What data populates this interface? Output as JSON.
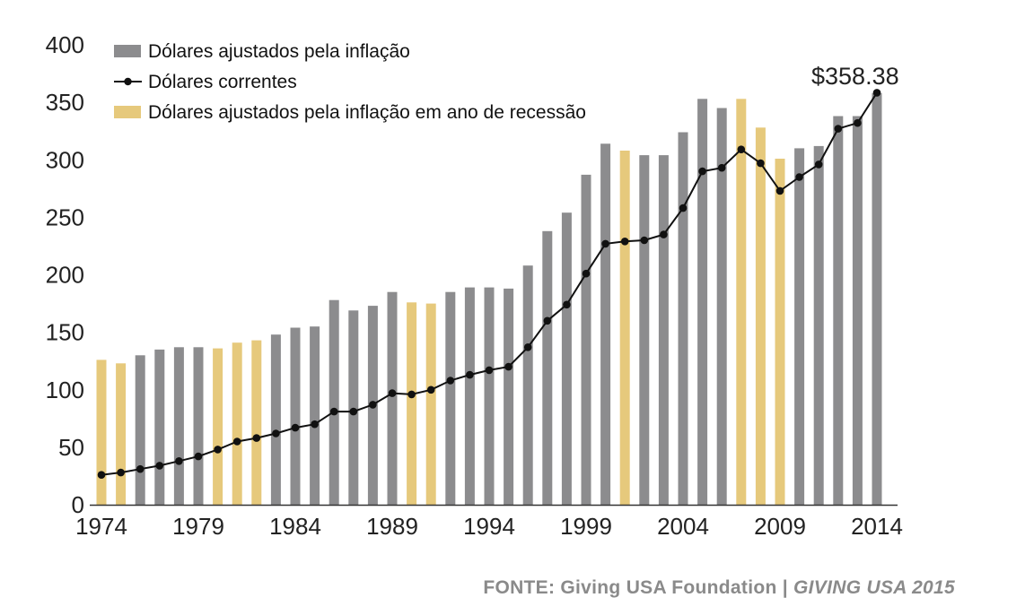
{
  "chart_data": {
    "type": "bar",
    "x": [
      1974,
      1975,
      1976,
      1977,
      1978,
      1979,
      1980,
      1981,
      1982,
      1983,
      1984,
      1985,
      1986,
      1987,
      1988,
      1989,
      1990,
      1991,
      1992,
      1993,
      1994,
      1995,
      1996,
      1997,
      1998,
      1999,
      2000,
      2001,
      2002,
      2003,
      2004,
      2005,
      2006,
      2007,
      2008,
      2009,
      2010,
      2011,
      2012,
      2013,
      2014
    ],
    "series": [
      {
        "name": "Dólares ajustados pela inflação",
        "kind": "bar",
        "color": "#8c8c8e",
        "recession_color": "#e6c97c",
        "values": [
          126,
          123,
          130,
          135,
          137,
          137,
          136,
          141,
          143,
          148,
          154,
          155,
          178,
          169,
          173,
          185,
          176,
          175,
          185,
          189,
          189,
          188,
          208,
          238,
          254,
          287,
          314,
          308,
          304,
          304,
          324,
          353,
          345,
          353,
          328,
          301,
          310,
          312,
          338,
          338,
          358
        ],
        "recession_flags": [
          1,
          1,
          0,
          0,
          0,
          0,
          1,
          1,
          1,
          0,
          0,
          0,
          0,
          0,
          0,
          0,
          1,
          1,
          0,
          0,
          0,
          0,
          0,
          0,
          0,
          0,
          0,
          1,
          0,
          0,
          0,
          0,
          0,
          1,
          1,
          1,
          0,
          0,
          0,
          0,
          0
        ]
      },
      {
        "name": "Dólares correntes",
        "kind": "line",
        "color": "#111111",
        "values": [
          26,
          28,
          31,
          34,
          38,
          42,
          48,
          55,
          58,
          62,
          67,
          70,
          81,
          81,
          87,
          97,
          96,
          100,
          108,
          113,
          117,
          120,
          137,
          160,
          174,
          201,
          227,
          229,
          230,
          235,
          258,
          290,
          293,
          309,
          297,
          273,
          285,
          296,
          327,
          332,
          358.38
        ]
      },
      {
        "name": "Dólares ajustados pela inflação em ano de recessão",
        "kind": "legend",
        "color": "#e6c97c"
      }
    ],
    "ylim": [
      0,
      400
    ],
    "yticks": [
      "0",
      "50",
      "100",
      "150",
      "200",
      "250",
      "300",
      "350",
      "400"
    ],
    "xticks": [
      "1974",
      "1979",
      "1984",
      "1989",
      "1994",
      "1999",
      "2004",
      "2009",
      "2014"
    ],
    "annotation": "$358.38",
    "legend_position": "top-left",
    "grid": false
  },
  "source": {
    "text": "FONTE: Giving USA Foundation | ",
    "publication": "GIVING USA 2015"
  }
}
